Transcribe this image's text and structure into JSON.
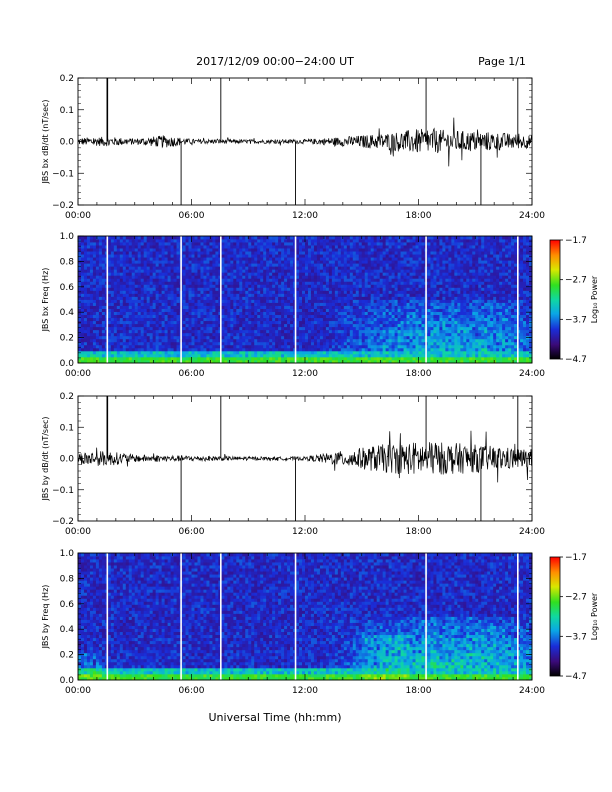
{
  "header": {
    "date_range": "2017/12/09   00:00−24:00 UT",
    "page": "Page 1/1"
  },
  "footer": {
    "xaxis_title": "Universal Time (hh:mm)"
  },
  "chart_data": [
    {
      "type": "line",
      "ylabel": "JBS bx dB/dt (nT/sec)",
      "xlim": [
        0,
        24
      ],
      "ylim": [
        -0.2,
        0.2
      ],
      "x_tick_labels": [
        "00:00",
        "06:00",
        "12:00",
        "18:00",
        "24:00"
      ],
      "y_tick_labels": [
        "0.2",
        "0.1",
        "0.0",
        "−0.1",
        "−0.2"
      ],
      "spikes_hours": [
        1.55,
        5.45,
        7.55,
        11.5,
        18.4,
        21.3,
        23.25
      ],
      "series_description_envelope": [
        {
          "hour": 0,
          "amp": 0.012
        },
        {
          "hour": 1.5,
          "amp": 0.015
        },
        {
          "hour": 3,
          "amp": 0.01
        },
        {
          "hour": 4.6,
          "amp": 0.02
        },
        {
          "hour": 6,
          "amp": 0.008
        },
        {
          "hour": 9,
          "amp": 0.006
        },
        {
          "hour": 12,
          "amp": 0.007
        },
        {
          "hour": 14,
          "amp": 0.015
        },
        {
          "hour": 16,
          "amp": 0.025
        },
        {
          "hour": 18,
          "amp": 0.04
        },
        {
          "hour": 20,
          "amp": 0.035
        },
        {
          "hour": 22,
          "amp": 0.03
        },
        {
          "hour": 24,
          "amp": 0.02
        }
      ]
    },
    {
      "type": "heatmap",
      "ylabel": "JBS bx Freq (Hz)",
      "xlim": [
        0,
        24
      ],
      "ylim": [
        0,
        1.0
      ],
      "x_tick_labels": [
        "00:00",
        "06:00",
        "12:00",
        "18:00",
        "24:00"
      ],
      "y_tick_labels": [
        "1.0",
        "0.8",
        "0.6",
        "0.4",
        "0.2",
        "0.0"
      ],
      "colorbar_label": "Log₁₀ Power",
      "colorbar_ticks": [
        "−1.7",
        "−2.7",
        "−3.7",
        "−4.7"
      ],
      "colorbar_range": [
        -4.7,
        -1.7
      ],
      "gap_lines_hours": [
        1.55,
        5.45,
        7.55,
        11.5,
        18.4,
        23.25
      ]
    },
    {
      "type": "line",
      "ylabel": "JBS by dB/dt (nT/sec)",
      "xlim": [
        0,
        24
      ],
      "ylim": [
        -0.2,
        0.2
      ],
      "x_tick_labels": [
        "00:00",
        "06:00",
        "12:00",
        "18:00",
        "24:00"
      ],
      "y_tick_labels": [
        "0.2",
        "0.1",
        "0.0",
        "−0.1",
        "−0.2"
      ],
      "spikes_hours": [
        1.55,
        5.45,
        7.55,
        11.5,
        18.4,
        21.3,
        23.25
      ],
      "series_description_envelope": [
        {
          "hour": 0,
          "amp": 0.02
        },
        {
          "hour": 1.5,
          "amp": 0.025
        },
        {
          "hour": 3,
          "amp": 0.012
        },
        {
          "hour": 5,
          "amp": 0.01
        },
        {
          "hour": 7,
          "amp": 0.008
        },
        {
          "hour": 10,
          "amp": 0.005
        },
        {
          "hour": 12,
          "amp": 0.006
        },
        {
          "hour": 14,
          "amp": 0.025
        },
        {
          "hour": 16,
          "amp": 0.045
        },
        {
          "hour": 18,
          "amp": 0.055
        },
        {
          "hour": 20,
          "amp": 0.05
        },
        {
          "hour": 22,
          "amp": 0.04
        },
        {
          "hour": 24,
          "amp": 0.03
        }
      ]
    },
    {
      "type": "heatmap",
      "ylabel": "JBS by Freq (Hz)",
      "xlim": [
        0,
        24
      ],
      "ylim": [
        0,
        1.0
      ],
      "x_tick_labels": [
        "00:00",
        "06:00",
        "12:00",
        "18:00",
        "24:00"
      ],
      "y_tick_labels": [
        "1.0",
        "0.8",
        "0.6",
        "0.4",
        "0.2",
        "0.0"
      ],
      "colorbar_label": "Log₁₀ Power",
      "colorbar_ticks": [
        "−1.7",
        "−2.7",
        "−3.7",
        "−4.7"
      ],
      "colorbar_range": [
        -4.7,
        -1.7
      ],
      "gap_lines_hours": [
        1.55,
        5.45,
        7.55,
        11.5,
        18.4,
        23.25
      ]
    }
  ]
}
